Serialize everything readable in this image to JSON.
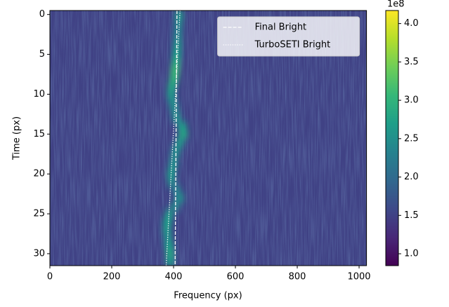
{
  "chart_data": {
    "type": "heatmap",
    "xlabel": "Frequency (px)",
    "ylabel": "Time (px)",
    "xlim": [
      0,
      1024
    ],
    "xticks": [
      0,
      200,
      400,
      600,
      800,
      1000
    ],
    "ylim": [
      -0.5,
      31.5
    ],
    "yticks": [
      0,
      5,
      10,
      15,
      20,
      25,
      30
    ],
    "invert_y": true,
    "background": 1.5,
    "signal": {
      "center": [
        418,
        416,
        414,
        413,
        412,
        410,
        408,
        405,
        402,
        395,
        392,
        398,
        404,
        410,
        428,
        432,
        420,
        408,
        402,
        398,
        392,
        394,
        410,
        420,
        405,
        386,
        380,
        378,
        382,
        385,
        388,
        388
      ],
      "peak": [
        2.6,
        2.4,
        2.3,
        2.4,
        2.6,
        2.7,
        2.9,
        3.1,
        3.0,
        2.8,
        2.6,
        2.5,
        2.4,
        2.5,
        2.7,
        2.8,
        2.6,
        2.5,
        2.4,
        2.5,
        2.6,
        2.4,
        2.3,
        2.5,
        2.4,
        2.6,
        2.7,
        2.6,
        2.5,
        2.7,
        2.8,
        2.6
      ]
    },
    "series": [
      {
        "name": "Final Bright",
        "color": "#ffffff",
        "dash": "dashed",
        "x": [
          411,
          405
        ],
        "y": [
          -0.5,
          31.5
        ]
      },
      {
        "name": "TurboSETI Bright",
        "color": "#ffffff",
        "dash": "dotted",
        "x": [
          421,
          376
        ],
        "y": [
          -0.5,
          31.5
        ]
      }
    ],
    "legend": "upper right",
    "colorbar": {
      "lim": [
        0.845,
        4.17
      ],
      "offset_label": "1e8",
      "ticks": [
        {
          "value": 1.0,
          "label": "1.0"
        },
        {
          "value": 1.5,
          "label": "1.5"
        },
        {
          "value": 2.0,
          "label": "2.0"
        },
        {
          "value": 2.5,
          "label": "2.5"
        },
        {
          "value": 3.0,
          "label": "3.0"
        },
        {
          "value": 3.5,
          "label": "3.5"
        },
        {
          "value": 4.0,
          "label": "4.0"
        }
      ]
    }
  }
}
